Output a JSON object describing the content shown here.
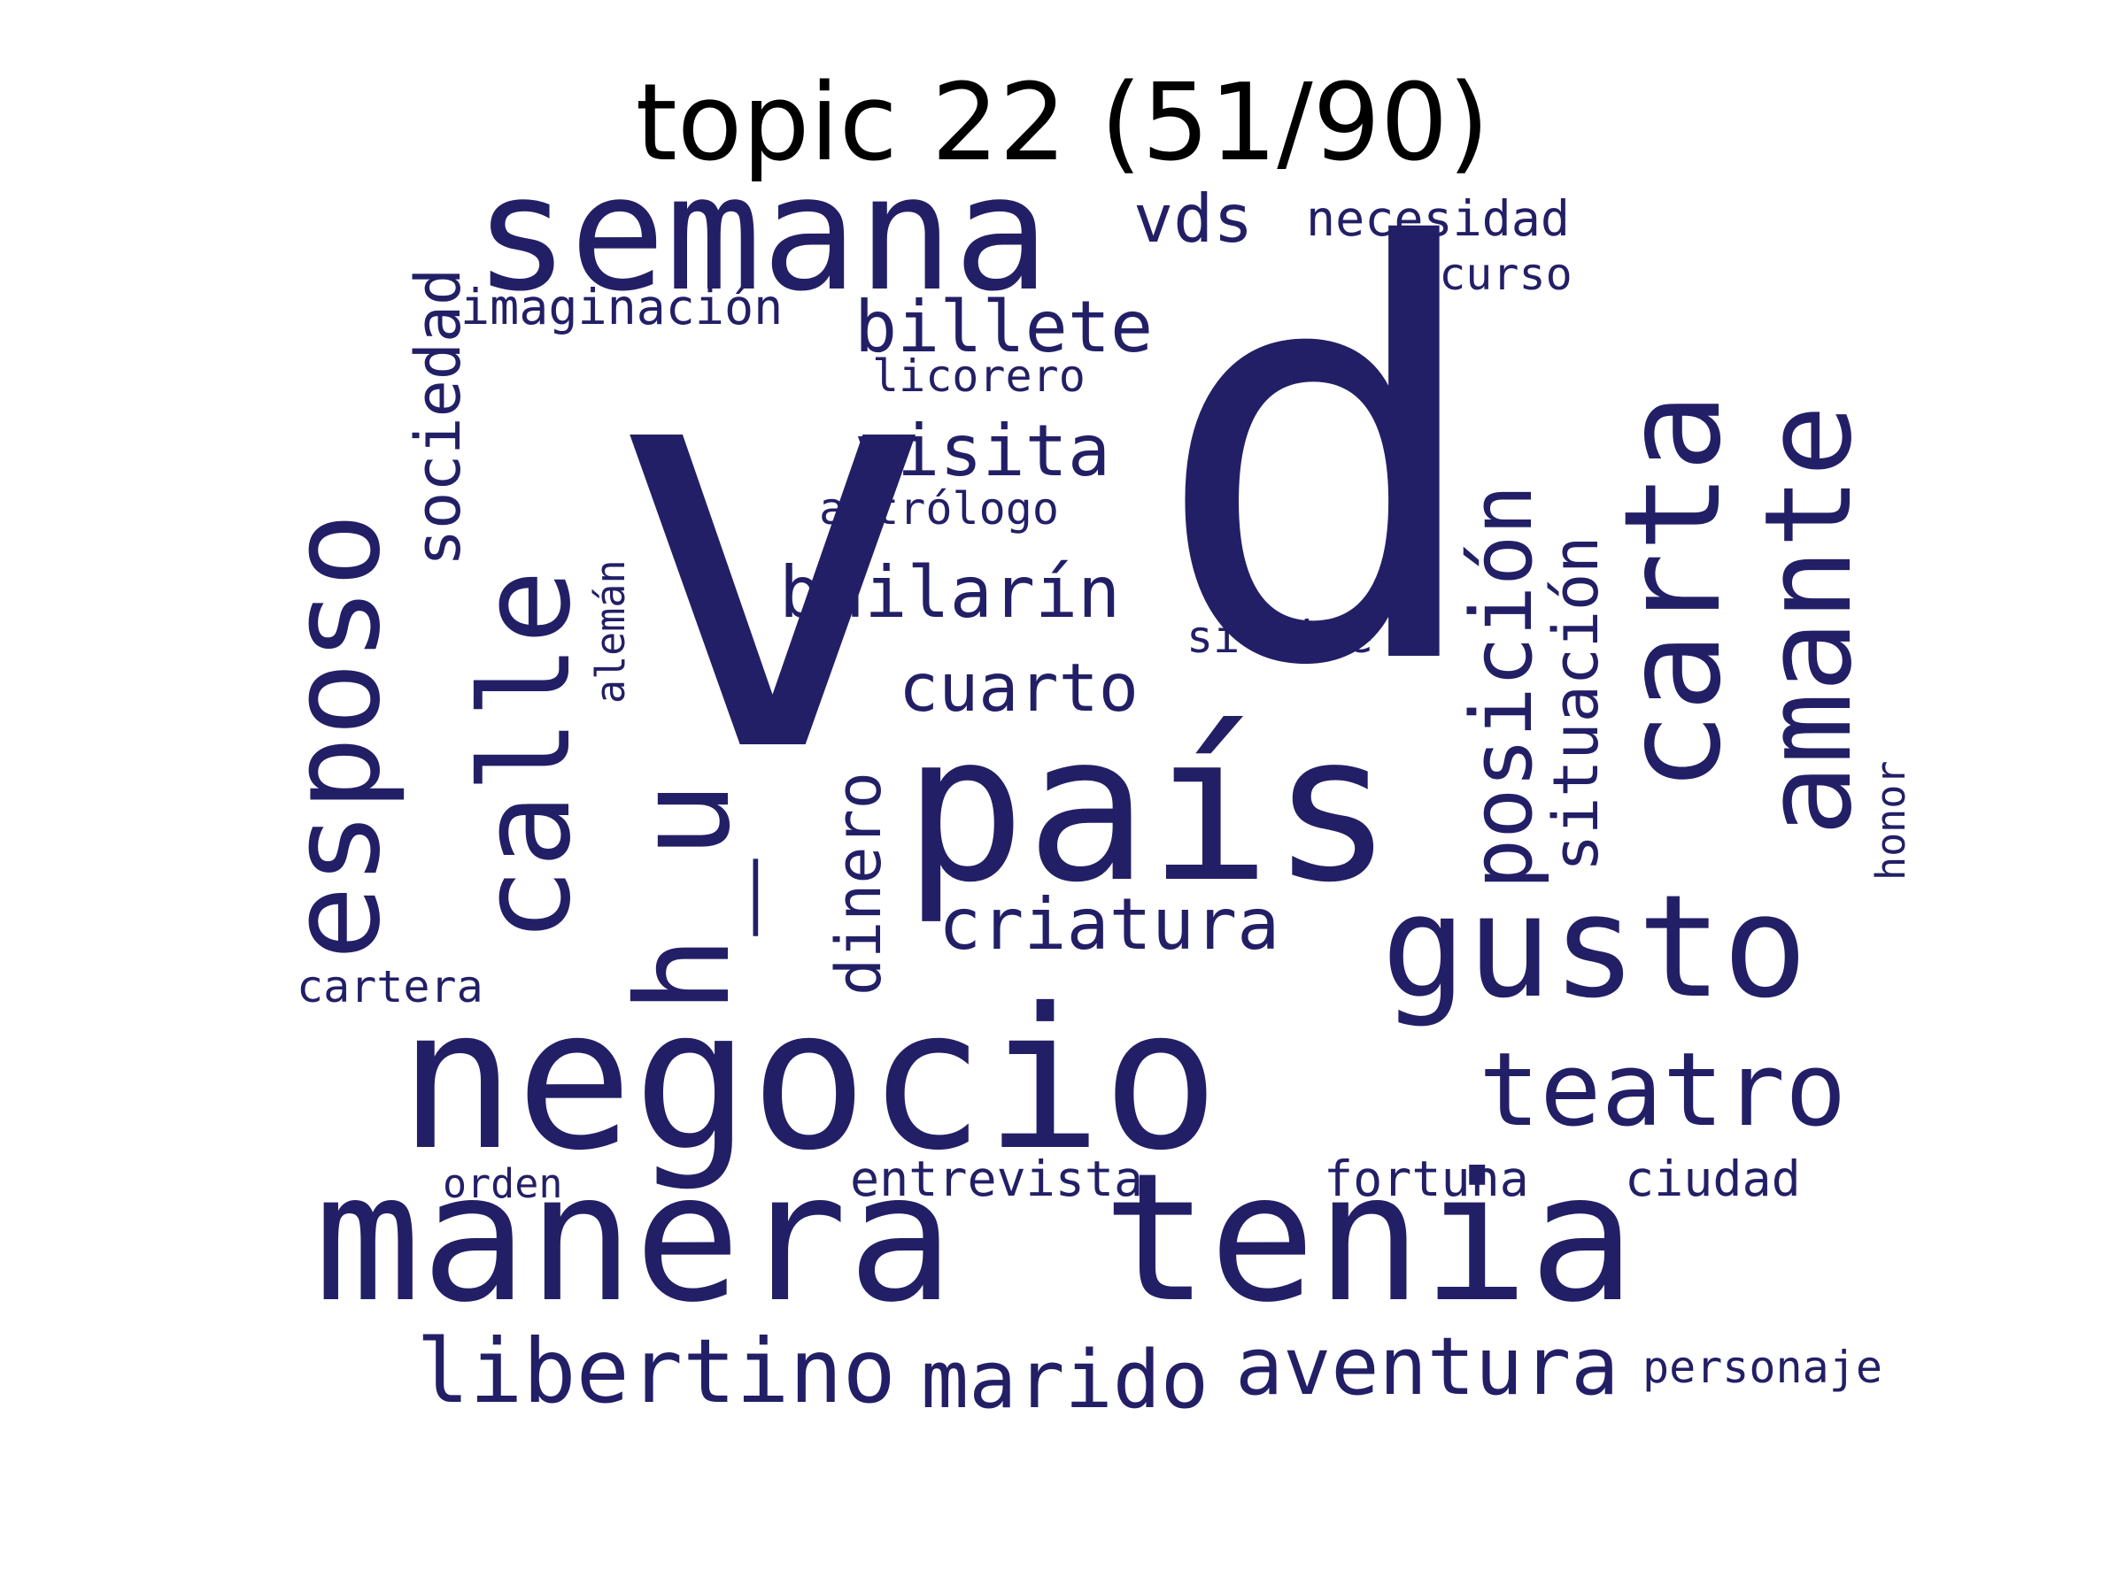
{
  "title": "topic 22 (51/90)",
  "colors": {
    "word": "#231f66",
    "title": "#000000",
    "background": "#ffffff"
  },
  "words": [
    {
      "id": "v",
      "text": "v"
    },
    {
      "id": "d",
      "text": "d"
    },
    {
      "id": "negocio",
      "text": "negocio"
    },
    {
      "id": "manera",
      "text": "manera"
    },
    {
      "id": "tenia",
      "text": "tenia"
    },
    {
      "id": "pais",
      "text": "país"
    },
    {
      "id": "semana",
      "text": "semana"
    },
    {
      "id": "esposo",
      "text": "esposo"
    },
    {
      "id": "calle",
      "text": "calle"
    },
    {
      "id": "carta",
      "text": "carta"
    },
    {
      "id": "amante",
      "text": "amante"
    },
    {
      "id": "gusto",
      "text": "gusto"
    },
    {
      "id": "hu",
      "text": "h_u"
    },
    {
      "id": "teatro",
      "text": "teatro"
    },
    {
      "id": "posicion",
      "text": "posición"
    },
    {
      "id": "aventura",
      "text": "aventura"
    },
    {
      "id": "libertino",
      "text": "libertino"
    },
    {
      "id": "marido",
      "text": "marido"
    },
    {
      "id": "billete",
      "text": "billete"
    },
    {
      "id": "bailarin",
      "text": "bailarín"
    },
    {
      "id": "criatura",
      "text": "criatura"
    },
    {
      "id": "visita",
      "text": "visita"
    },
    {
      "id": "vds",
      "text": "vds"
    },
    {
      "id": "cuarto",
      "text": "cuarto"
    },
    {
      "id": "sociedad",
      "text": "sociedad"
    },
    {
      "id": "dinero",
      "text": "dinero"
    },
    {
      "id": "situacion",
      "text": "situación"
    },
    {
      "id": "imaginacion",
      "text": "imaginación"
    },
    {
      "id": "necesidad",
      "text": "necesidad"
    },
    {
      "id": "entrevista",
      "text": "entrevista"
    },
    {
      "id": "fortuna",
      "text": "fortuna"
    },
    {
      "id": "ciudad",
      "text": "ciudad"
    },
    {
      "id": "personaje",
      "text": "personaje"
    },
    {
      "id": "astrologo",
      "text": "astrólogo"
    },
    {
      "id": "licorero",
      "text": "licorero"
    },
    {
      "id": "recurso",
      "text": "recurso"
    },
    {
      "id": "silfide",
      "text": "sílfide"
    },
    {
      "id": "cartera",
      "text": "cartera"
    },
    {
      "id": "orden",
      "text": "orden"
    },
    {
      "id": "aleman",
      "text": "alemán"
    },
    {
      "id": "honor",
      "text": "honor"
    }
  ]
}
